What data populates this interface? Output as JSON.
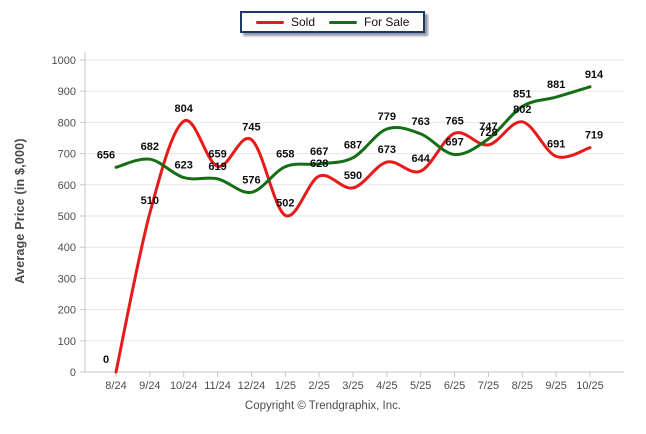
{
  "legend": {
    "items": [
      {
        "label": "Sold",
        "color": "#e81a1a"
      },
      {
        "label": "For Sale",
        "color": "#156e15"
      }
    ]
  },
  "y_axis_title": "Average Price (in $,000)",
  "footer": {
    "copyright": "Copyright © Trendgraphix, Inc."
  },
  "chart_data": {
    "type": "line",
    "categories": [
      "8/24",
      "9/24",
      "10/24",
      "11/24",
      "12/24",
      "1/25",
      "2/25",
      "3/25",
      "4/25",
      "5/25",
      "6/25",
      "7/25",
      "8/25",
      "9/25",
      "10/25"
    ],
    "series": [
      {
        "name": "Sold",
        "color": "#e81a1a",
        "values": [
          0,
          510,
          804,
          659,
          745,
          502,
          628,
          590,
          673,
          644,
          765,
          728,
          802,
          691,
          719
        ]
      },
      {
        "name": "For Sale",
        "color": "#156e15",
        "values": [
          656,
          682,
          623,
          619,
          576,
          658,
          667,
          687,
          779,
          763,
          697,
          747,
          851,
          881,
          914
        ]
      }
    ],
    "title": "",
    "xlabel": "",
    "ylabel": "Average Price (in $,000)",
    "ylim": [
      0,
      1000
    ],
    "ytick_step": 100,
    "grid": "horizontal",
    "legend_position": "top-center",
    "smoothing": "spline",
    "colors": {
      "grid": "#e6e6e6",
      "axis": "#c6c6c6",
      "tick_label": "#4d4d4d",
      "data_label": "#0d0d0d"
    }
  }
}
